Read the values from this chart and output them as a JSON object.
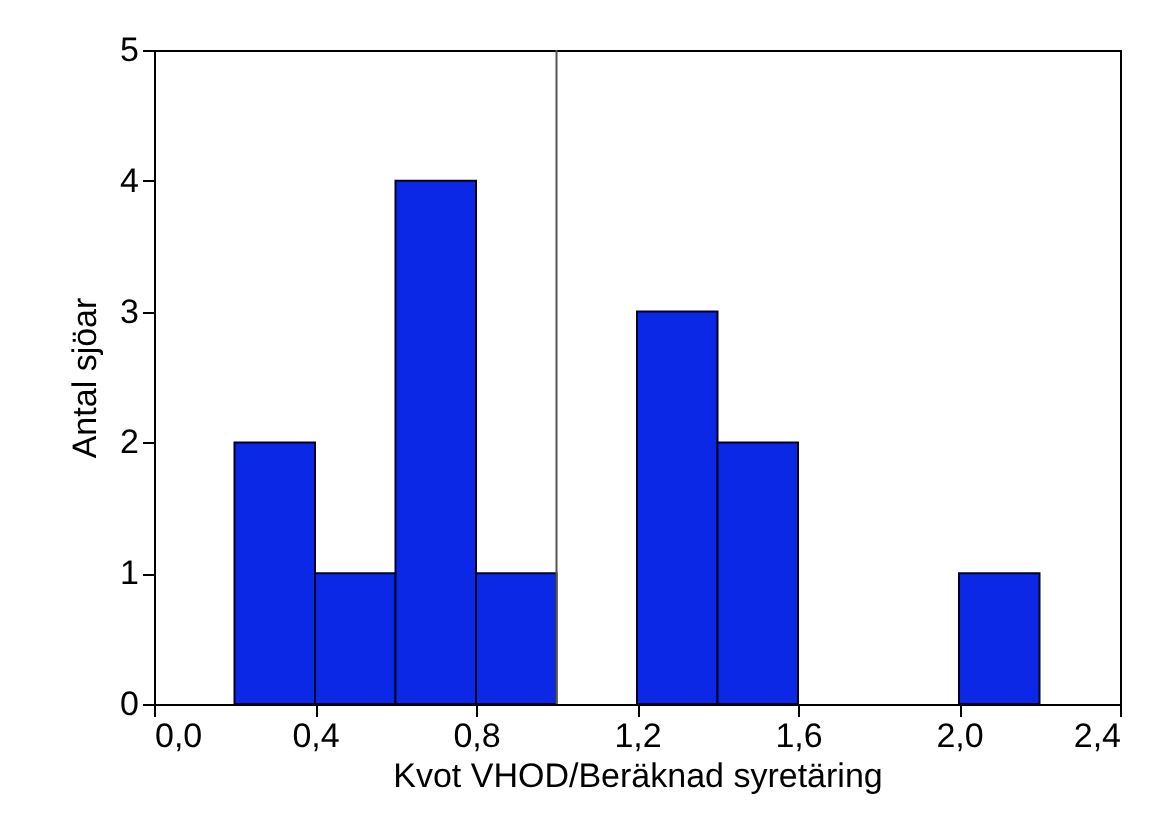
{
  "chart_data": {
    "type": "histogram",
    "xlabel": "Kvot VHOD/Beräknad  syretäring",
    "ylabel": "Antal sjöar",
    "bins": [
      0.2,
      0.4,
      0.6,
      0.8,
      1.0,
      1.2,
      1.4,
      1.6,
      1.8,
      2.0,
      2.2
    ],
    "values": [
      2,
      1,
      4,
      1,
      0,
      3,
      2,
      0,
      0,
      1
    ],
    "color": "#0a28e6",
    "xlim": [
      0,
      2.4
    ],
    "xticks": [
      {
        "value": 0,
        "label": "0,0"
      },
      {
        "value": 0.4,
        "label": "0,4"
      },
      {
        "value": 0.8,
        "label": "0,8"
      },
      {
        "value": 1.2,
        "label": "1,2"
      },
      {
        "value": 1.6,
        "label": "1,6"
      },
      {
        "value": 2.0,
        "label": "2,0"
      },
      {
        "value": 2.4,
        "label": "2,4"
      }
    ],
    "ylim": [
      0,
      5
    ],
    "yticks": [
      0,
      1,
      2,
      3,
      4,
      5
    ],
    "ref_lines": [
      {
        "axis": "x",
        "value": 1.0,
        "color": "#555555"
      }
    ],
    "grid": false
  }
}
